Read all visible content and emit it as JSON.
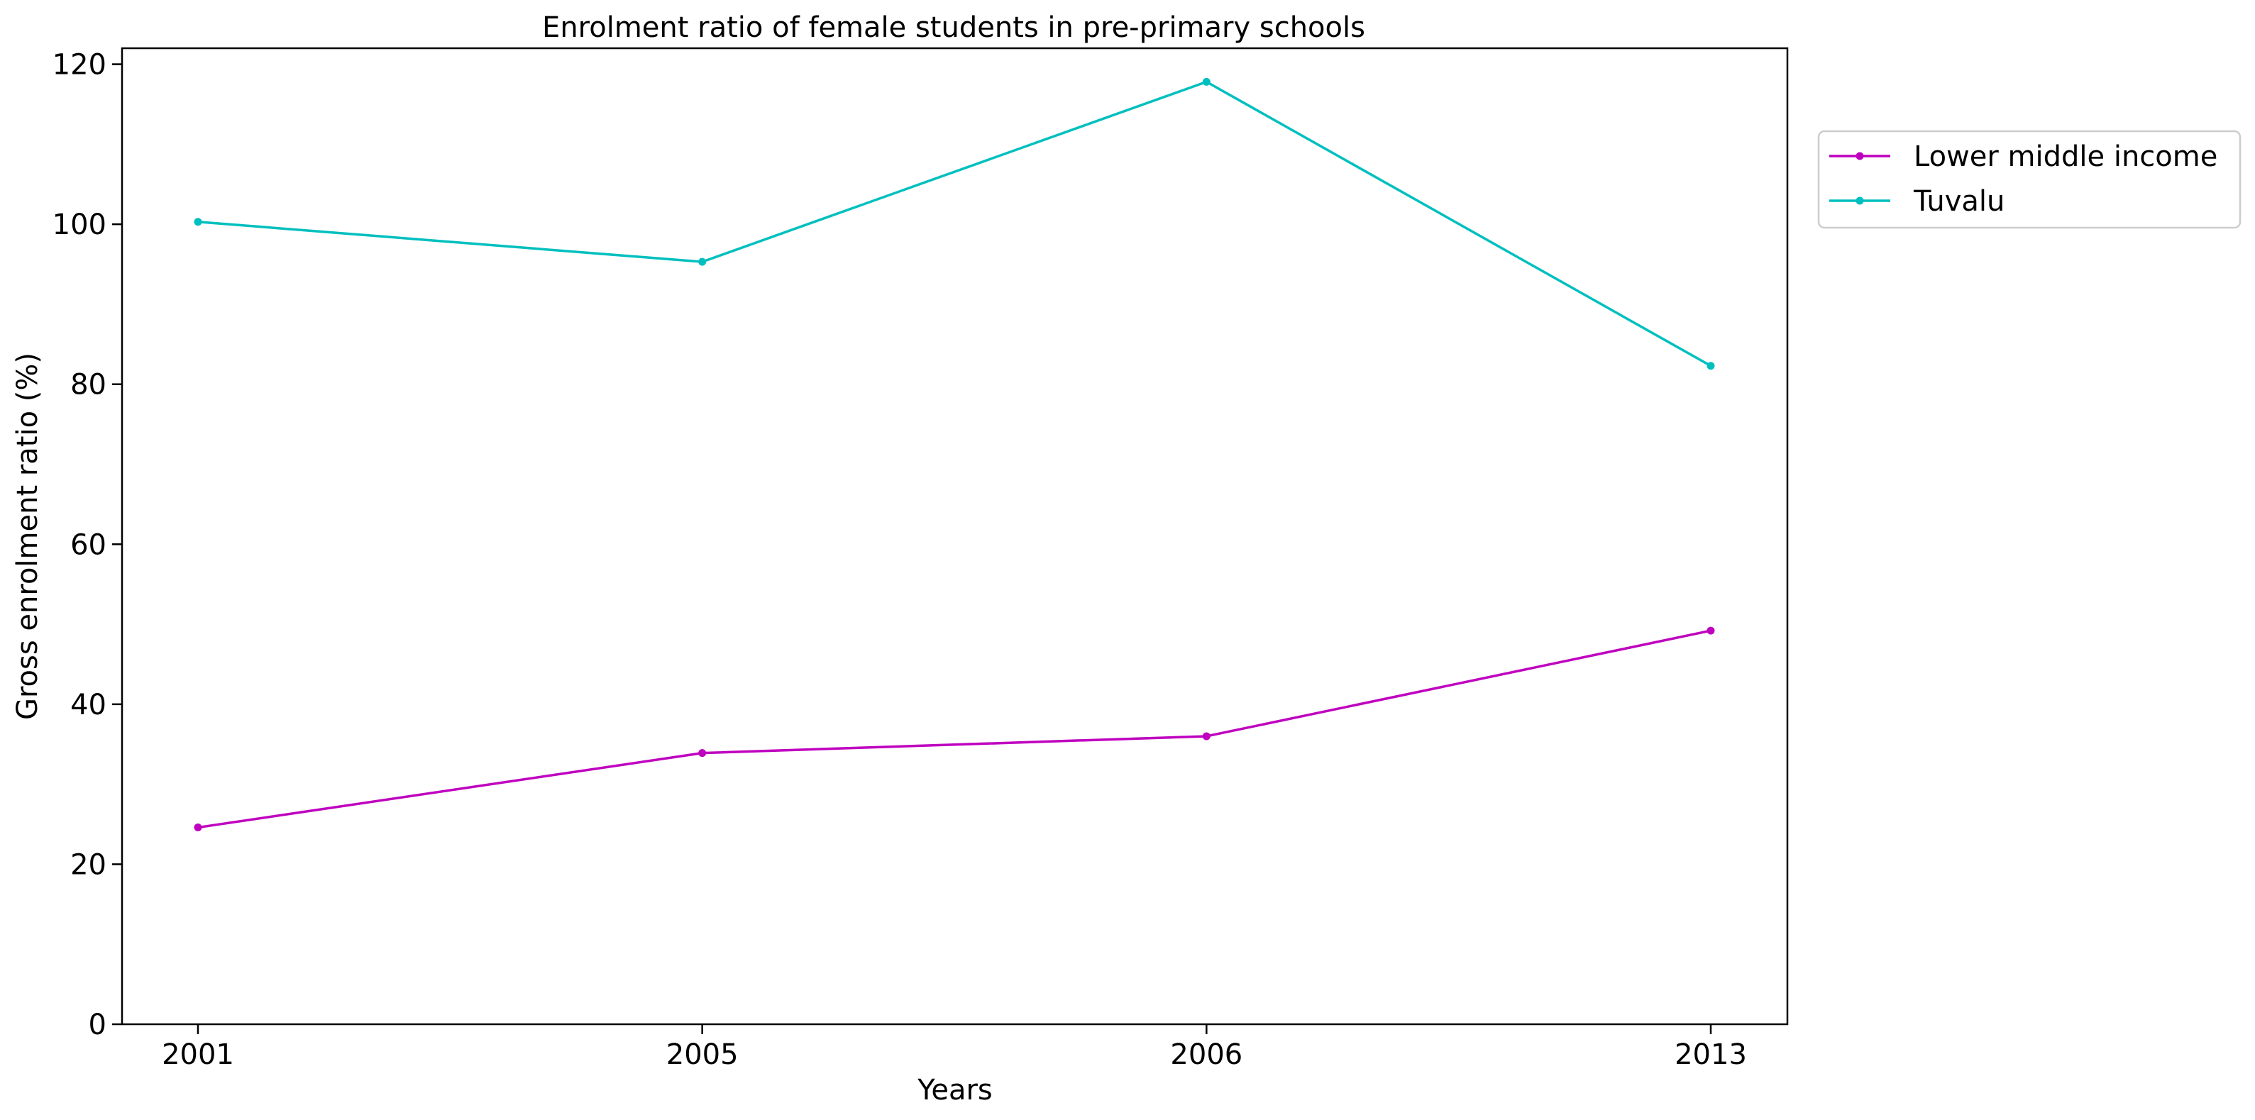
{
  "chart_data": {
    "type": "line",
    "title": "Enrolment ratio of female students in pre-primary schools",
    "xlabel": "Years",
    "ylabel": "Gross enrolment ratio (%)",
    "categories": [
      "2001",
      "2005",
      "2006",
      "2013"
    ],
    "ylim": [
      0,
      122
    ],
    "yticks": [
      0,
      20,
      40,
      60,
      80,
      100,
      120
    ],
    "grid": false,
    "legend_position": "upper-right-outside",
    "series": [
      {
        "name": "Lower middle income",
        "color": "#bf00bf",
        "values": [
          24.6,
          33.9,
          36.0,
          49.2
        ]
      },
      {
        "name": "Tuvalu",
        "color": "#00bfbf",
        "values": [
          100.3,
          95.3,
          117.8,
          82.3
        ]
      }
    ]
  }
}
